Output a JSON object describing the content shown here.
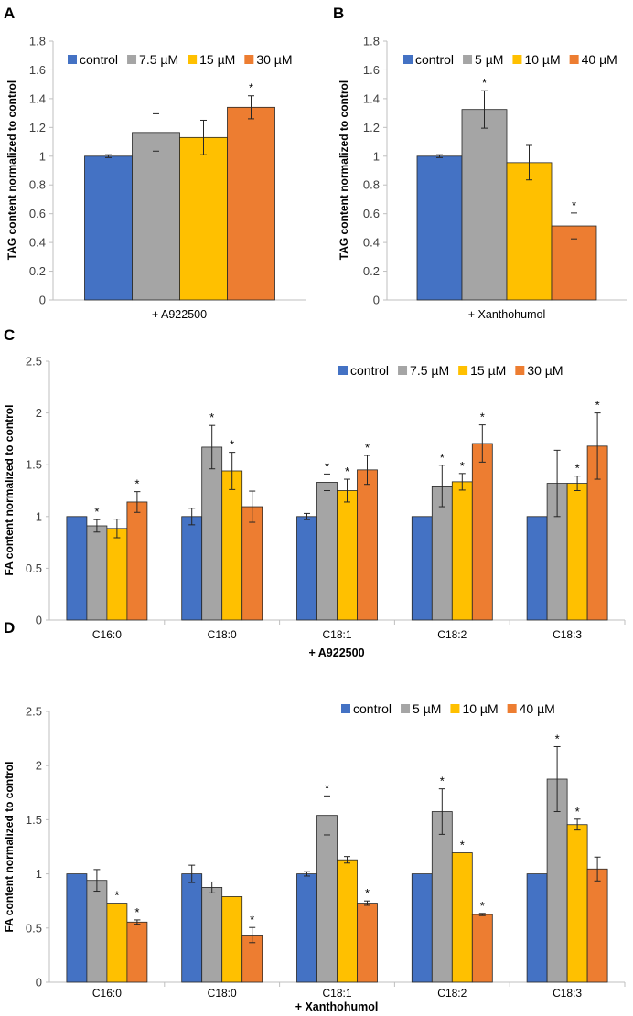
{
  "chart_data": [
    {
      "panel": "A",
      "type": "bar",
      "ylabel": "TAG content normalized to control",
      "xlabel": "+ A922500",
      "ylim": [
        0,
        1.8
      ],
      "yticks": [
        0,
        0.2,
        0.4,
        0.6,
        0.8,
        1,
        1.2,
        1.4,
        1.6,
        1.8
      ],
      "categories": [
        ""
      ],
      "legend_position": "top",
      "series": [
        {
          "name": "control",
          "color": "#4472C4",
          "values": [
            1.0
          ],
          "errors": [
            0.01
          ],
          "sig": [
            false
          ]
        },
        {
          "name": "7.5 µM",
          "color": "#A5A5A5",
          "values": [
            1.165
          ],
          "errors": [
            0.13
          ],
          "sig": [
            false
          ]
        },
        {
          "name": "15 µM",
          "color": "#FFC000",
          "values": [
            1.13
          ],
          "errors": [
            0.12
          ],
          "sig": [
            false
          ]
        },
        {
          "name": "30 µM",
          "color": "#ED7D31",
          "values": [
            1.34
          ],
          "errors": [
            0.08
          ],
          "sig": [
            true
          ]
        }
      ]
    },
    {
      "panel": "B",
      "type": "bar",
      "ylabel": "TAG content normalized to control",
      "xlabel": "+ Xanthohumol",
      "ylim": [
        0,
        1.8
      ],
      "yticks": [
        0,
        0.2,
        0.4,
        0.6,
        0.8,
        1,
        1.2,
        1.4,
        1.6,
        1.8
      ],
      "categories": [
        ""
      ],
      "legend_position": "top",
      "series": [
        {
          "name": "control",
          "color": "#4472C4",
          "values": [
            1.0
          ],
          "errors": [
            0.01
          ],
          "sig": [
            false
          ]
        },
        {
          "name": "5 µM",
          "color": "#A5A5A5",
          "values": [
            1.325
          ],
          "errors": [
            0.13
          ],
          "sig": [
            true
          ]
        },
        {
          "name": "10 µM",
          "color": "#FFC000",
          "values": [
            0.955
          ],
          "errors": [
            0.12
          ],
          "sig": [
            false
          ]
        },
        {
          "name": "40 µM",
          "color": "#ED7D31",
          "values": [
            0.515
          ],
          "errors": [
            0.09
          ],
          "sig": [
            true
          ]
        }
      ]
    },
    {
      "panel": "C",
      "type": "bar",
      "ylabel": "FA content normalized to control",
      "xlabel": "+ A922500",
      "ylim": [
        0,
        2.5
      ],
      "yticks": [
        0,
        0.5,
        1,
        1.5,
        2,
        2.5
      ],
      "categories": [
        "C16:0",
        "C18:0",
        "C18:1",
        "C18:2",
        "C18:3"
      ],
      "legend_position": "top-right",
      "series": [
        {
          "name": "control",
          "color": "#4472C4",
          "values": [
            1.0,
            1.0,
            1.0,
            1.0,
            1.0
          ],
          "errors": [
            0.0,
            0.08,
            0.03,
            0.0,
            0.0
          ],
          "sig": [
            false,
            false,
            false,
            false,
            false
          ]
        },
        {
          "name": "7.5 µM",
          "color": "#A5A5A5",
          "values": [
            0.91,
            1.67,
            1.33,
            1.295,
            1.32
          ],
          "errors": [
            0.06,
            0.21,
            0.08,
            0.2,
            0.32
          ],
          "sig": [
            true,
            true,
            true,
            true,
            false
          ]
        },
        {
          "name": "15 µM",
          "color": "#FFC000",
          "values": [
            0.885,
            1.44,
            1.25,
            1.335,
            1.32
          ],
          "errors": [
            0.09,
            0.18,
            0.11,
            0.08,
            0.07
          ],
          "sig": [
            false,
            true,
            true,
            true,
            true
          ]
        },
        {
          "name": "30 µM",
          "color": "#ED7D31",
          "values": [
            1.14,
            1.095,
            1.45,
            1.705,
            1.68
          ],
          "errors": [
            0.1,
            0.15,
            0.14,
            0.18,
            0.32
          ],
          "sig": [
            true,
            false,
            true,
            true,
            true
          ]
        }
      ]
    },
    {
      "panel": "D",
      "type": "bar",
      "ylabel": "FA content normalized to control",
      "xlabel": "+ Xanthohumol",
      "ylim": [
        0,
        2.5
      ],
      "yticks": [
        0,
        0.5,
        1,
        1.5,
        2,
        2.5
      ],
      "categories": [
        "C16:0",
        "C18:0",
        "C18:1",
        "C18:2",
        "C18:3"
      ],
      "legend_position": "top-right",
      "series": [
        {
          "name": "control",
          "color": "#4472C4",
          "values": [
            1.0,
            1.0,
            1.0,
            1.0,
            1.0
          ],
          "errors": [
            0.0,
            0.08,
            0.02,
            0.0,
            0.0
          ],
          "sig": [
            false,
            false,
            false,
            false,
            false
          ]
        },
        {
          "name": "5 µM",
          "color": "#A5A5A5",
          "values": [
            0.94,
            0.875,
            1.54,
            1.575,
            1.875
          ],
          "errors": [
            0.1,
            0.05,
            0.18,
            0.21,
            0.3
          ],
          "sig": [
            false,
            false,
            true,
            true,
            true
          ]
        },
        {
          "name": "10 µM",
          "color": "#FFC000",
          "values": [
            0.73,
            0.79,
            1.13,
            1.195,
            1.455
          ],
          "errors": [
            0.0,
            0.0,
            0.03,
            0.0,
            0.05
          ],
          "sig": [
            true,
            false,
            false,
            true,
            true
          ]
        },
        {
          "name": "40 µM",
          "color": "#ED7D31",
          "values": [
            0.555,
            0.435,
            0.73,
            0.625,
            1.045
          ],
          "errors": [
            0.02,
            0.07,
            0.02,
            0.01,
            0.11
          ],
          "sig": [
            true,
            true,
            true,
            true,
            false
          ]
        }
      ]
    }
  ],
  "significance_marker": "*"
}
